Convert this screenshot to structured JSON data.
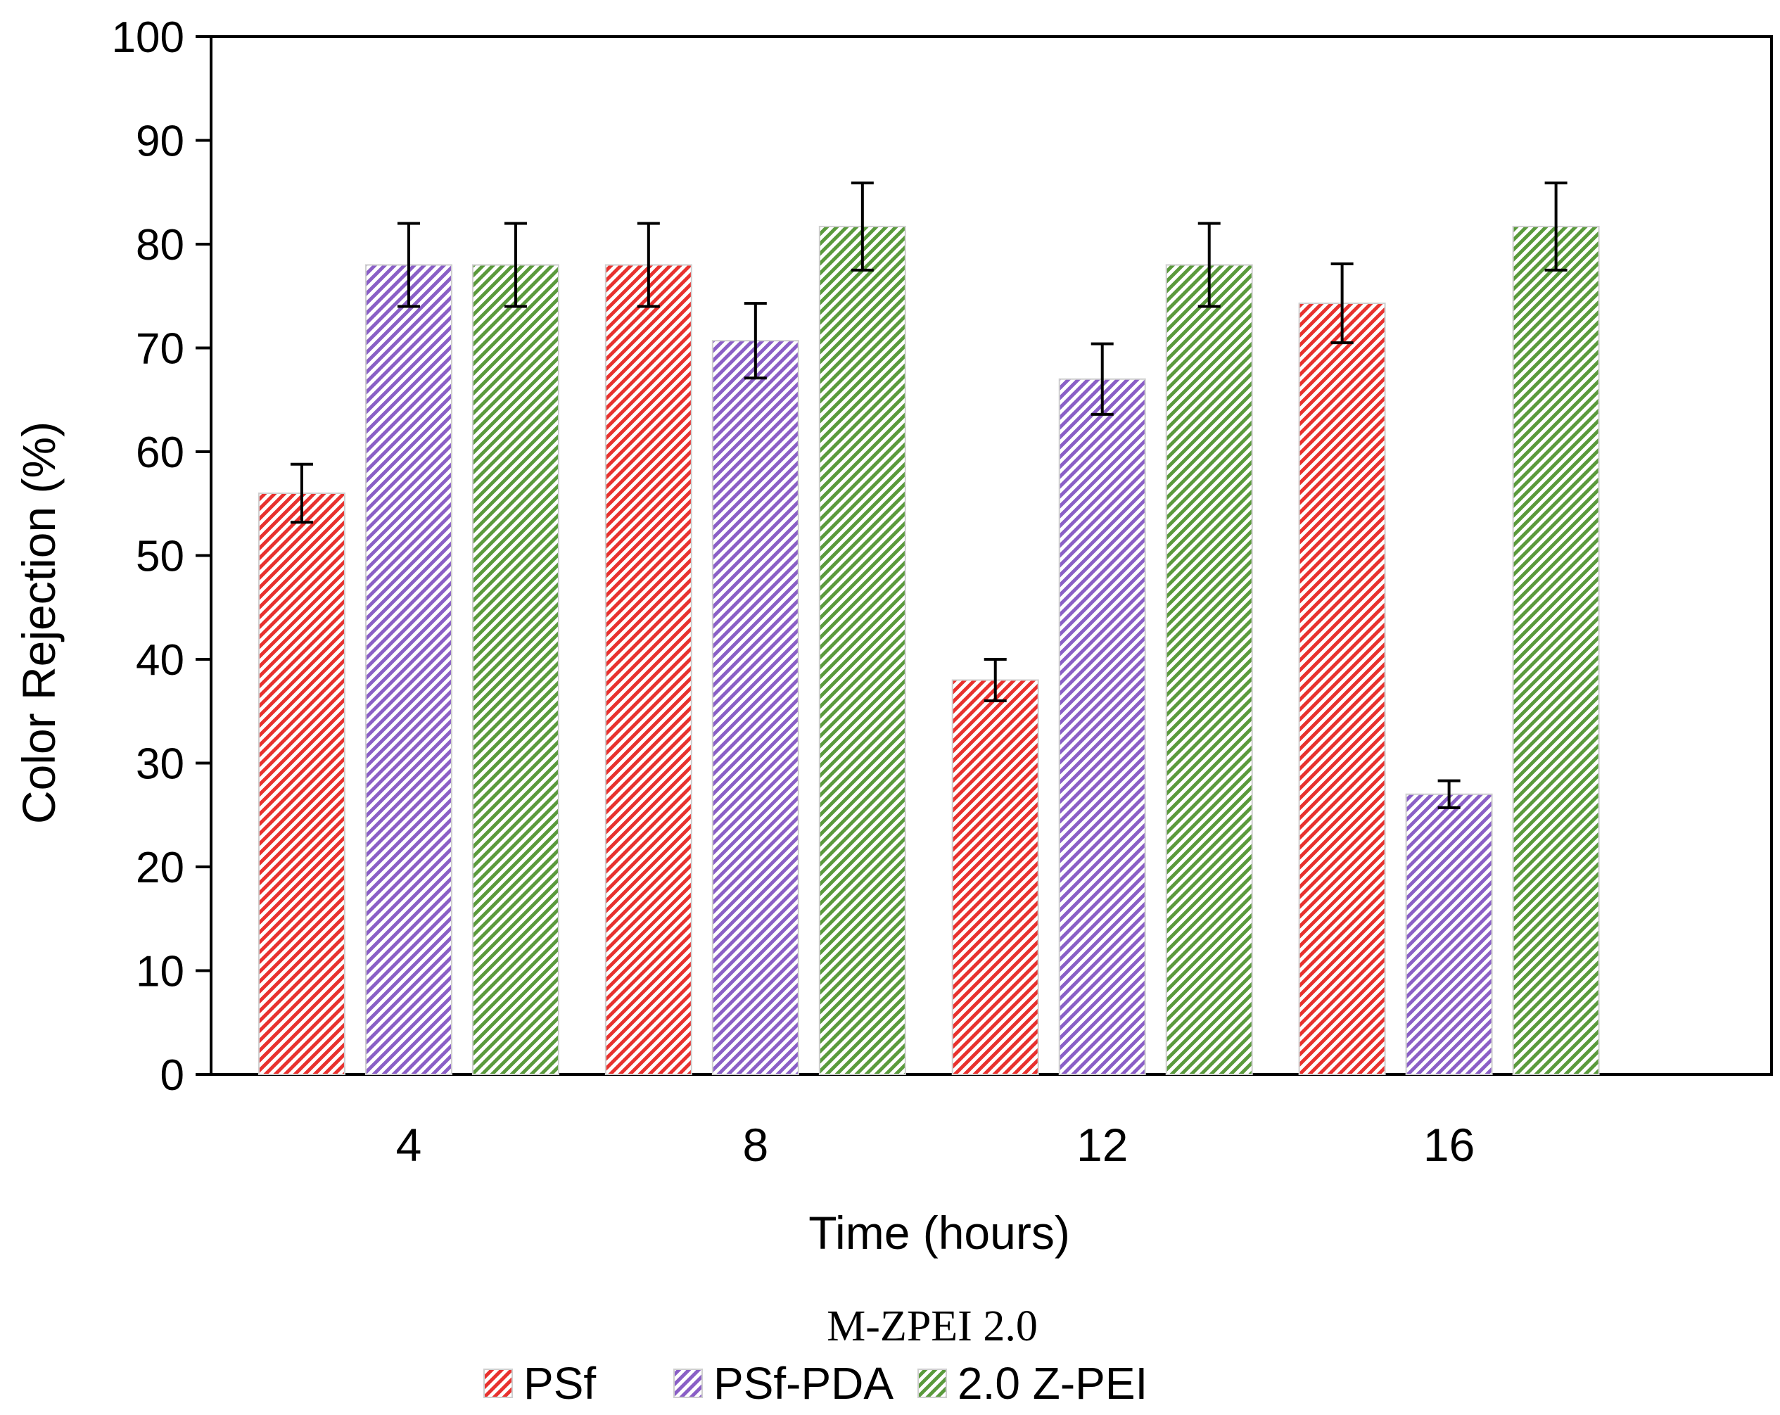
{
  "chart_data": {
    "type": "bar",
    "title": "M-ZPEI 2.0",
    "xlabel": "Time (hours)",
    "ylabel": "Color Rejection (%)",
    "categories": [
      "4",
      "8",
      "12",
      "16"
    ],
    "ylim": [
      0,
      100
    ],
    "yticks": [
      "0",
      "10",
      "20",
      "30",
      "40",
      "50",
      "60",
      "70",
      "80",
      "90",
      "100"
    ],
    "grid": false,
    "legend_position": "bottom-center",
    "series": [
      {
        "name": "PSf",
        "color": "#e8312e",
        "values": [
          56,
          78,
          38,
          74.3
        ],
        "errors": [
          2.8,
          4,
          2,
          3.8
        ]
      },
      {
        "name": "PSf-PDA",
        "color": "#8a5fc6",
        "values": [
          78,
          70.7,
          67,
          27
        ],
        "errors": [
          4,
          3.6,
          3.4,
          1.3
        ]
      },
      {
        "name": "2.0 Z-PEI",
        "color": "#5a9a3c",
        "values": [
          78,
          81.7,
          78,
          81.7
        ],
        "errors": [
          4,
          4.2,
          4,
          4.2
        ]
      }
    ]
  }
}
